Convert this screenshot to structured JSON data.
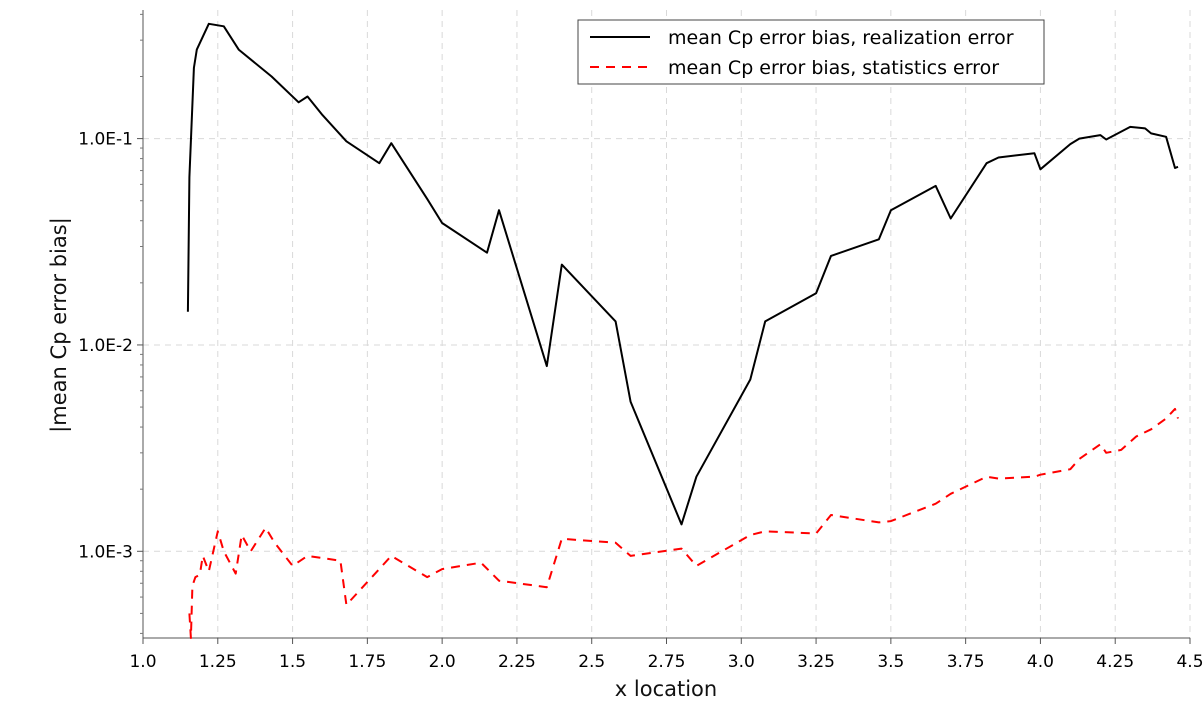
{
  "chart_data": {
    "type": "line",
    "title": "",
    "xlabel": "x location",
    "ylabel": "|mean Cp error bias|",
    "xlim": [
      1.0,
      4.5
    ],
    "ylim": [
      0.00038,
      0.42
    ],
    "yscale": "log",
    "grid": true,
    "legend_position": "top-right",
    "x_ticks": [
      "1.0",
      "1.25",
      "1.5",
      "1.75",
      "2.0",
      "2.25",
      "2.5",
      "2.75",
      "3.0",
      "3.25",
      "3.5",
      "3.75",
      "4.0",
      "4.25",
      "4.5"
    ],
    "y_ticks": [
      {
        "value": 0.001,
        "label": "1.0E-3"
      },
      {
        "value": 0.01,
        "label": "1.0E-2"
      },
      {
        "value": 0.1,
        "label": "1.0E-1"
      }
    ],
    "series": [
      {
        "name": "mean Cp error bias, realization error",
        "color": "#000000",
        "dash": "solid",
        "x": [
          1.15,
          1.155,
          1.17,
          1.18,
          1.22,
          1.27,
          1.32,
          1.43,
          1.52,
          1.55,
          1.6,
          1.68,
          1.79,
          1.83,
          1.95,
          2.0,
          2.15,
          2.19,
          2.35,
          2.4,
          2.58,
          2.63,
          2.8,
          2.85,
          3.03,
          3.08,
          3.25,
          3.3,
          3.46,
          3.5,
          3.65,
          3.7,
          3.82,
          3.86,
          3.98,
          4.0,
          4.1,
          4.13,
          4.2,
          4.22,
          4.3,
          4.35,
          4.37,
          4.42,
          4.45,
          4.46
        ],
        "y": [
          0.0145,
          0.065,
          0.22,
          0.27,
          0.36,
          0.35,
          0.27,
          0.2,
          0.15,
          0.16,
          0.13,
          0.097,
          0.076,
          0.095,
          0.051,
          0.039,
          0.028,
          0.045,
          0.0079,
          0.0245,
          0.013,
          0.0053,
          0.00135,
          0.0023,
          0.0068,
          0.013,
          0.0178,
          0.027,
          0.0325,
          0.045,
          0.059,
          0.041,
          0.076,
          0.081,
          0.085,
          0.071,
          0.094,
          0.1,
          0.104,
          0.099,
          0.114,
          0.112,
          0.106,
          0.102,
          0.072,
          0.073
        ]
      },
      {
        "name": "mean Cp error bias, statistics error",
        "color": "#ff0000",
        "dash": "dashed",
        "x": [
          1.155,
          1.16,
          1.165,
          1.175,
          1.19,
          1.2,
          1.22,
          1.25,
          1.27,
          1.31,
          1.33,
          1.36,
          1.41,
          1.44,
          1.5,
          1.55,
          1.66,
          1.68,
          1.83,
          1.95,
          2.0,
          2.13,
          2.19,
          2.35,
          2.4,
          2.58,
          2.63,
          2.8,
          2.85,
          3.03,
          3.08,
          3.25,
          3.3,
          3.46,
          3.5,
          3.65,
          3.7,
          3.82,
          3.86,
          3.98,
          4.0,
          4.1,
          4.13,
          4.2,
          4.22,
          4.27,
          4.32,
          4.37,
          4.42,
          4.45,
          4.46
        ],
        "y": [
          0.0005,
          0.00038,
          0.00068,
          0.00075,
          0.00077,
          0.00095,
          0.0008,
          0.00125,
          0.001,
          0.00078,
          0.0012,
          0.001,
          0.0013,
          0.0011,
          0.00085,
          0.00095,
          0.0009,
          0.00055,
          0.00095,
          0.00075,
          0.00082,
          0.00088,
          0.00072,
          0.00067,
          0.00115,
          0.0011,
          0.00095,
          0.00103,
          0.00085,
          0.0012,
          0.00125,
          0.00122,
          0.0015,
          0.00138,
          0.0014,
          0.0017,
          0.0019,
          0.0023,
          0.00225,
          0.0023,
          0.00235,
          0.0025,
          0.0028,
          0.0033,
          0.003,
          0.0031,
          0.0036,
          0.0039,
          0.0044,
          0.0049,
          0.0044
        ]
      }
    ]
  }
}
